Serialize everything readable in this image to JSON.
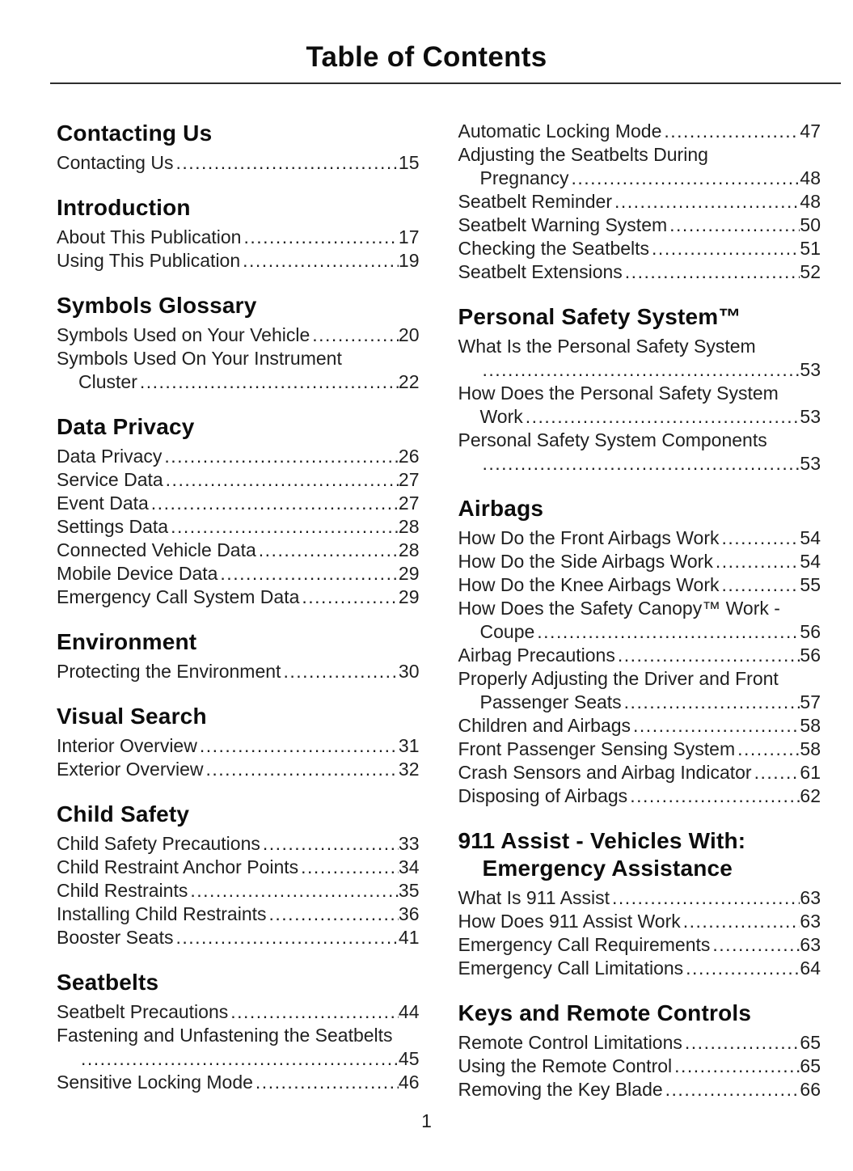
{
  "page": {
    "title": "Table of Contents",
    "page_number": "1"
  },
  "columns": [
    {
      "sections": [
        {
          "heading": "Contacting Us",
          "entries": [
            {
              "label": "Contacting Us",
              "page": "15"
            }
          ]
        },
        {
          "heading": "Introduction",
          "entries": [
            {
              "label": "About This Publication",
              "page": "17"
            },
            {
              "label": "Using This Publication",
              "page": "19"
            }
          ]
        },
        {
          "heading": "Symbols Glossary",
          "entries": [
            {
              "label": "Symbols Used on Your Vehicle",
              "page": "20"
            },
            {
              "label": "Symbols Used On Your Instrument",
              "label2": "Cluster",
              "page": "22"
            }
          ]
        },
        {
          "heading": "Data Privacy",
          "entries": [
            {
              "label": "Data Privacy",
              "page": "26"
            },
            {
              "label": "Service Data",
              "page": "27"
            },
            {
              "label": "Event Data",
              "page": "27"
            },
            {
              "label": "Settings Data",
              "page": "28"
            },
            {
              "label": "Connected Vehicle Data",
              "page": "28"
            },
            {
              "label": "Mobile Device Data",
              "page": "29"
            },
            {
              "label": "Emergency Call System Data",
              "page": "29"
            }
          ]
        },
        {
          "heading": "Environment",
          "entries": [
            {
              "label": "Protecting the Environment",
              "page": "30"
            }
          ]
        },
        {
          "heading": "Visual Search",
          "entries": [
            {
              "label": "Interior Overview",
              "page": "31"
            },
            {
              "label": "Exterior Overview",
              "page": "32"
            }
          ]
        },
        {
          "heading": "Child Safety",
          "entries": [
            {
              "label": "Child Safety Precautions",
              "page": "33"
            },
            {
              "label": "Child Restraint Anchor Points",
              "page": "34"
            },
            {
              "label": "Child Restraints",
              "page": "35"
            },
            {
              "label": "Installing Child Restraints",
              "page": "36"
            },
            {
              "label": "Booster Seats",
              "page": "41"
            }
          ]
        },
        {
          "heading": "Seatbelts",
          "entries": [
            {
              "label": "Seatbelt Precautions",
              "page": "44"
            },
            {
              "label": "Fastening and Unfastening the Seatbelts",
              "label2": "",
              "page": "45"
            },
            {
              "label": "Sensitive Locking Mode",
              "page": "46"
            }
          ]
        }
      ]
    },
    {
      "sections": [
        {
          "heading": "",
          "entries": [
            {
              "label": "Automatic Locking Mode",
              "page": "47"
            },
            {
              "label": "Adjusting the Seatbelts During",
              "label2": "Pregnancy",
              "page": "48"
            },
            {
              "label": "Seatbelt Reminder",
              "page": "48"
            },
            {
              "label": "Seatbelt Warning System",
              "page": "50"
            },
            {
              "label": "Checking the Seatbelts",
              "page": "51"
            },
            {
              "label": "Seatbelt Extensions",
              "page": "52"
            }
          ]
        },
        {
          "heading": "Personal Safety System™",
          "entries": [
            {
              "label": "What Is the Personal Safety System",
              "label2": "",
              "page": "53"
            },
            {
              "label": "How Does the Personal Safety System",
              "label2": "Work",
              "page": "53"
            },
            {
              "label": "Personal Safety System Components",
              "label2": "",
              "page": "53"
            }
          ]
        },
        {
          "heading": "Airbags",
          "entries": [
            {
              "label": "How Do the Front Airbags Work",
              "page": "54"
            },
            {
              "label": "How Do the Side Airbags Work",
              "page": "54"
            },
            {
              "label": "How Do the Knee Airbags Work",
              "page": "55"
            },
            {
              "label": "How Does the Safety Canopy™ Work -",
              "label2": "Coupe",
              "page": "56"
            },
            {
              "label": "Airbag Precautions",
              "page": "56"
            },
            {
              "label": "Properly Adjusting the Driver and Front",
              "label2": "Passenger Seats",
              "page": "57"
            },
            {
              "label": "Children and Airbags",
              "page": "58"
            },
            {
              "label": "Front Passenger Sensing System",
              "page": "58"
            },
            {
              "label": "Crash Sensors and Airbag Indicator",
              "page": "61"
            },
            {
              "label": "Disposing of Airbags",
              "page": "62"
            }
          ]
        },
        {
          "heading": "911 Assist - Vehicles With:",
          "heading_line2": "Emergency Assistance",
          "entries": [
            {
              "label": "What Is 911 Assist",
              "page": "63"
            },
            {
              "label": "How Does 911 Assist Work",
              "page": "63"
            },
            {
              "label": "Emergency Call Requirements",
              "page": "63"
            },
            {
              "label": "Emergency Call Limitations",
              "page": "64"
            }
          ]
        },
        {
          "heading": "Keys and Remote Controls",
          "entries": [
            {
              "label": "Remote Control Limitations",
              "page": "65"
            },
            {
              "label": "Using the Remote Control",
              "page": "65"
            },
            {
              "label": "Removing the Key Blade",
              "page": "66"
            }
          ]
        }
      ]
    }
  ]
}
